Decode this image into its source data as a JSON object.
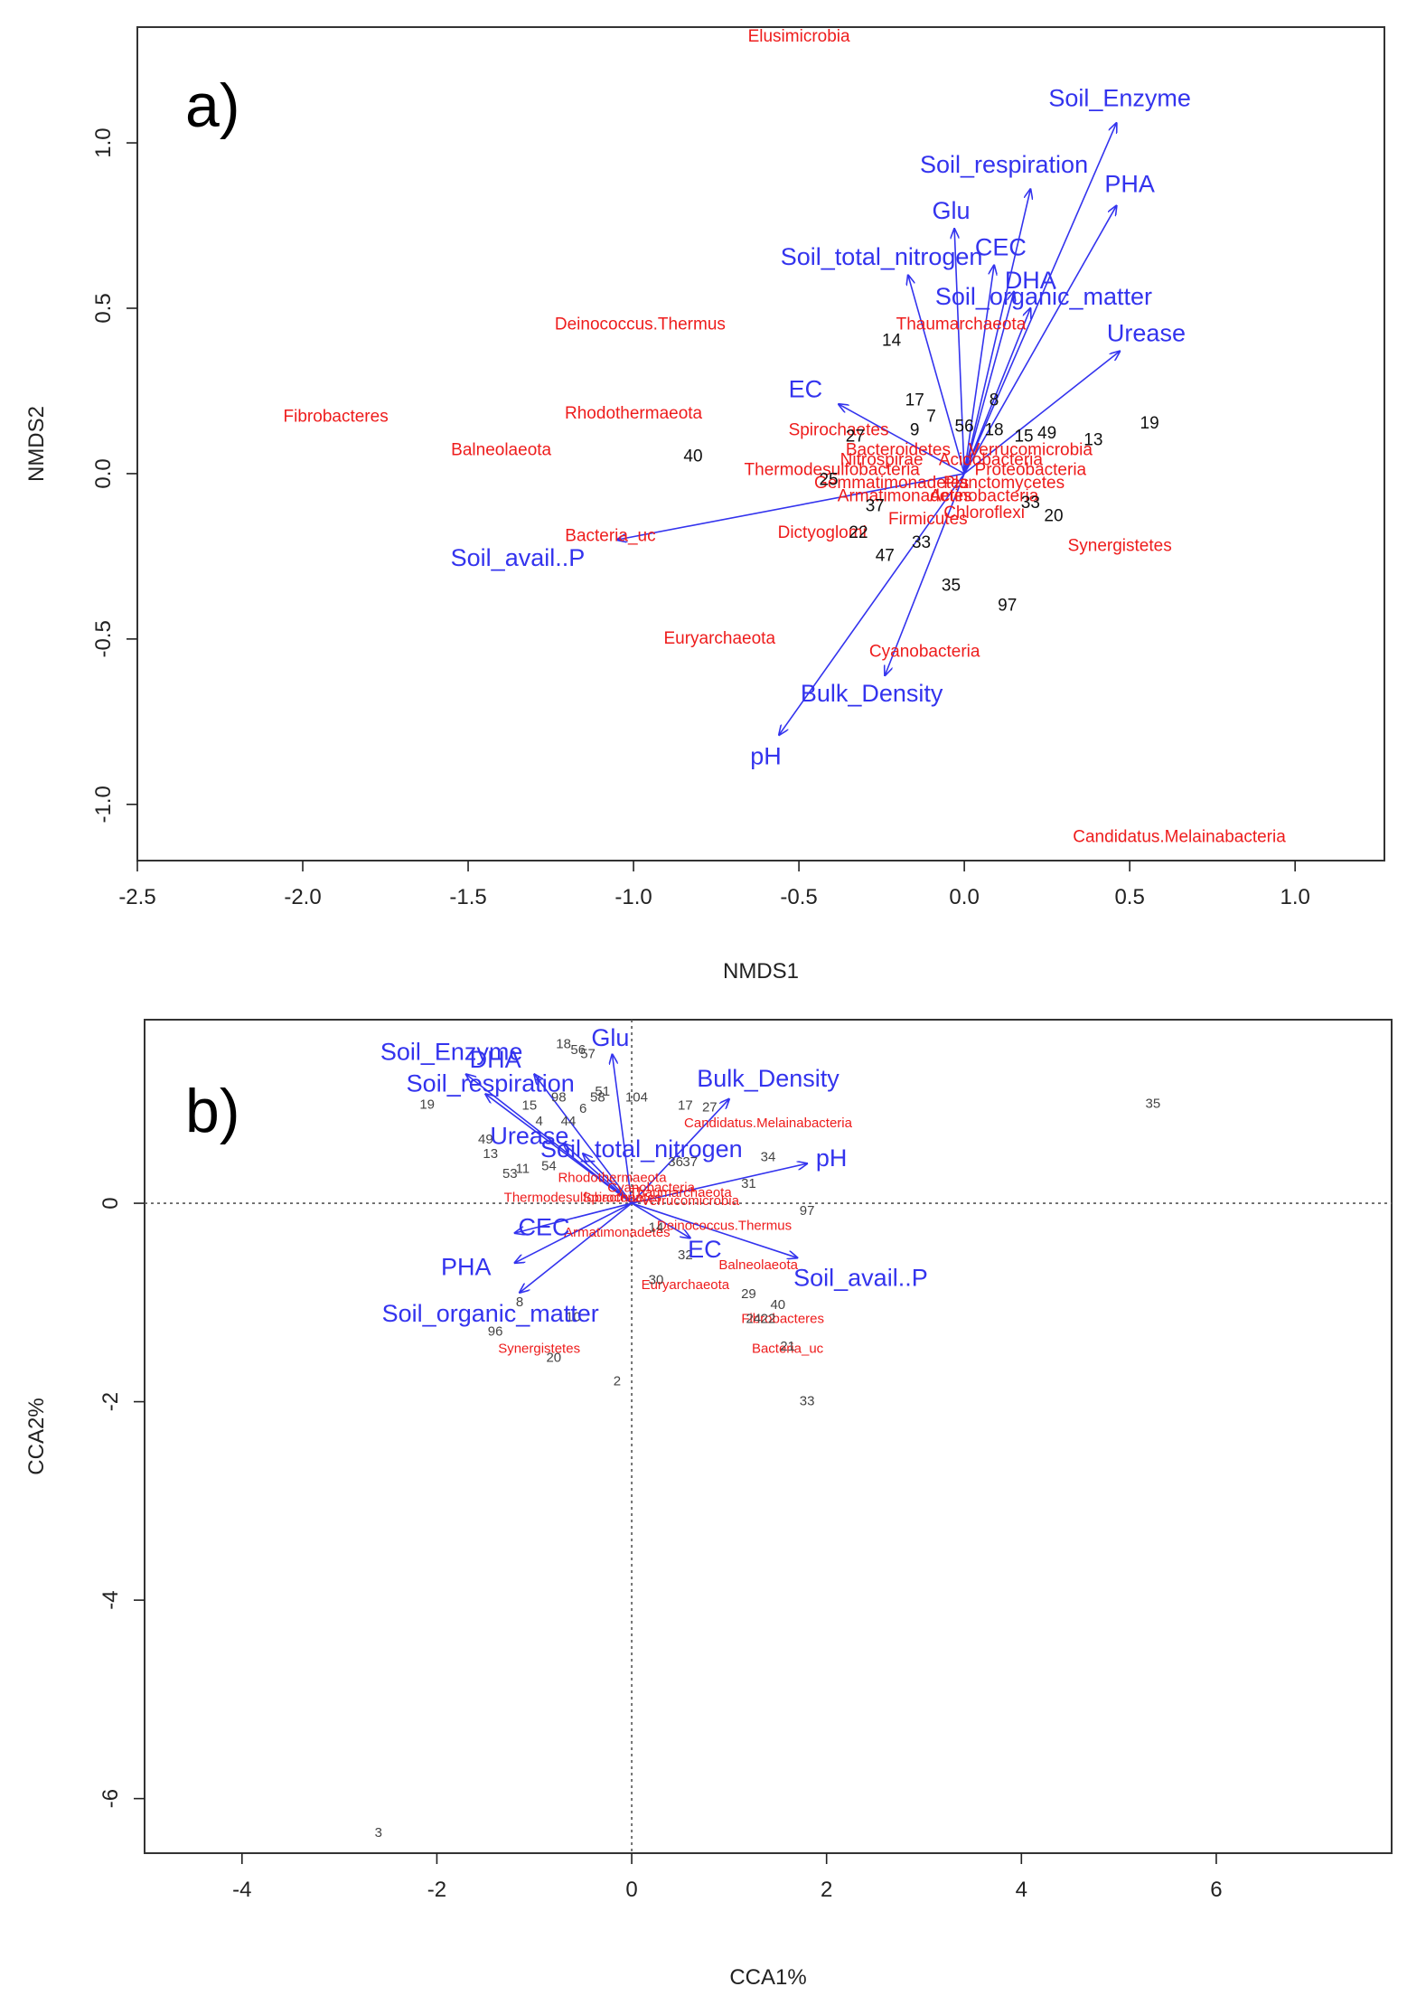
{
  "colors": {
    "env": "#3333ee",
    "species": "#ee1c1c",
    "site": "#111111",
    "axis": "#222222"
  },
  "chart_data": [
    {
      "type": "scatter",
      "panel_label": "a)",
      "xlabel": "NMDS1",
      "ylabel": "NMDS2",
      "xlim": [
        -2.5,
        1.27
      ],
      "ylim": [
        -1.17,
        1.35
      ],
      "x_ticks": [
        {
          "value": -2.5,
          "label": "-2.5"
        },
        {
          "value": -2.0,
          "label": "-2.0"
        },
        {
          "value": -1.5,
          "label": "-1.5"
        },
        {
          "value": -1.0,
          "label": "-1.0"
        },
        {
          "value": -0.5,
          "label": "-0.5"
        },
        {
          "value": 0.0,
          "label": "0.0"
        },
        {
          "value": 0.5,
          "label": "0.5"
        },
        {
          "value": 1.0,
          "label": "1.0"
        }
      ],
      "y_ticks": [
        {
          "value": -1.0,
          "label": "-1.0"
        },
        {
          "value": -0.5,
          "label": "-0.5"
        },
        {
          "value": 0.0,
          "label": "0.0"
        },
        {
          "value": 0.5,
          "label": "0.5"
        },
        {
          "value": 1.0,
          "label": "1.0"
        }
      ],
      "env_vectors": [
        {
          "label": "Soil_Enzyme",
          "x": 0.46,
          "y": 1.06,
          "lx": 0.47,
          "ly": 1.13
        },
        {
          "label": "Soil_respiration",
          "x": 0.2,
          "y": 0.86,
          "lx": 0.12,
          "ly": 0.93
        },
        {
          "label": "PHA",
          "x": 0.46,
          "y": 0.81,
          "lx": 0.5,
          "ly": 0.87
        },
        {
          "label": "Glu",
          "x": -0.03,
          "y": 0.74,
          "lx": -0.04,
          "ly": 0.79
        },
        {
          "label": "CEC",
          "x": 0.09,
          "y": 0.63,
          "lx": 0.11,
          "ly": 0.68
        },
        {
          "label": "Soil_total_nitrogen",
          "x": -0.17,
          "y": 0.6,
          "lx": -0.25,
          "ly": 0.65
        },
        {
          "label": "DHA",
          "x": 0.15,
          "y": 0.55,
          "lx": 0.2,
          "ly": 0.58
        },
        {
          "label": "Soil_organic_matter",
          "x": 0.2,
          "y": 0.5,
          "lx": 0.24,
          "ly": 0.53
        },
        {
          "label": "Urease",
          "x": 0.47,
          "y": 0.37,
          "lx": 0.55,
          "ly": 0.42
        },
        {
          "label": "EC",
          "x": -0.38,
          "y": 0.21,
          "lx": -0.48,
          "ly": 0.25
        },
        {
          "label": "Soil_avail..P",
          "x": -1.05,
          "y": -0.2,
          "lx": -1.35,
          "ly": -0.26
        },
        {
          "label": "Bulk_Density",
          "x": -0.24,
          "y": -0.61,
          "lx": -0.28,
          "ly": -0.67
        },
        {
          "label": "pH",
          "x": -0.56,
          "y": -0.79,
          "lx": -0.6,
          "ly": -0.86
        }
      ],
      "species": [
        {
          "label": "Elusimicrobia",
          "x": -0.5,
          "y": 1.32
        },
        {
          "label": "Deinococcus.Thermus",
          "x": -0.98,
          "y": 0.45
        },
        {
          "label": "Thaumarchaeota",
          "x": -0.01,
          "y": 0.45
        },
        {
          "label": "Fibrobacteres",
          "x": -1.9,
          "y": 0.17
        },
        {
          "label": "Rhodothermaeota",
          "x": -1.0,
          "y": 0.18
        },
        {
          "label": "Balneolaeota",
          "x": -1.4,
          "y": 0.07
        },
        {
          "label": "Spirochaetes",
          "x": -0.38,
          "y": 0.13
        },
        {
          "label": "Bacteroidetes",
          "x": -0.2,
          "y": 0.07
        },
        {
          "label": "Verrucomicrobia",
          "x": 0.2,
          "y": 0.07
        },
        {
          "label": "Nitrospirae",
          "x": -0.25,
          "y": 0.04
        },
        {
          "label": "Acidobacteria",
          "x": 0.08,
          "y": 0.04
        },
        {
          "label": "Thermodesulfobacteria",
          "x": -0.4,
          "y": 0.01
        },
        {
          "label": "Proteobacteria",
          "x": 0.2,
          "y": 0.01
        },
        {
          "label": "Gemmatimonadetes",
          "x": -0.22,
          "y": -0.03
        },
        {
          "label": "Planctomycetes",
          "x": 0.12,
          "y": -0.03
        },
        {
          "label": "Armatimonadetes",
          "x": -0.18,
          "y": -0.07
        },
        {
          "label": "Actinobacteria",
          "x": 0.06,
          "y": -0.07
        },
        {
          "label": "Firmicutes",
          "x": -0.11,
          "y": -0.14
        },
        {
          "label": "Chloroflexi",
          "x": 0.06,
          "y": -0.12
        },
        {
          "label": "Bacteria_uc",
          "x": -1.07,
          "y": -0.19
        },
        {
          "label": "Dictyoglomi",
          "x": -0.43,
          "y": -0.18
        },
        {
          "label": "Synergistetes",
          "x": 0.47,
          "y": -0.22
        },
        {
          "label": "Euryarchaeota",
          "x": -0.74,
          "y": -0.5
        },
        {
          "label": "Cyanobacteria",
          "x": -0.12,
          "y": -0.54
        },
        {
          "label": "Candidatus.Melainabacteria",
          "x": 0.65,
          "y": -1.1
        }
      ],
      "sites": [
        {
          "label": "14",
          "x": -0.22,
          "y": 0.4
        },
        {
          "label": "17",
          "x": -0.15,
          "y": 0.22
        },
        {
          "label": "9",
          "x": -0.15,
          "y": 0.13
        },
        {
          "label": "7",
          "x": -0.1,
          "y": 0.17
        },
        {
          "label": "56",
          "x": 0.0,
          "y": 0.14
        },
        {
          "label": "18",
          "x": 0.09,
          "y": 0.13
        },
        {
          "label": "8",
          "x": 0.09,
          "y": 0.22
        },
        {
          "label": "15",
          "x": 0.18,
          "y": 0.11
        },
        {
          "label": "49",
          "x": 0.25,
          "y": 0.12
        },
        {
          "label": "13",
          "x": 0.39,
          "y": 0.1
        },
        {
          "label": "19",
          "x": 0.56,
          "y": 0.15
        },
        {
          "label": "27",
          "x": -0.33,
          "y": 0.11
        },
        {
          "label": "40",
          "x": -0.82,
          "y": 0.05
        },
        {
          "label": "25",
          "x": -0.41,
          "y": -0.02
        },
        {
          "label": "37",
          "x": -0.27,
          "y": -0.1
        },
        {
          "label": "33",
          "x": 0.2,
          "y": -0.09
        },
        {
          "label": "20",
          "x": 0.27,
          "y": -0.13
        },
        {
          "label": "22",
          "x": -0.32,
          "y": -0.18
        },
        {
          "label": "33",
          "x": -0.13,
          "y": -0.21
        },
        {
          "label": "47",
          "x": -0.24,
          "y": -0.25
        },
        {
          "label": "35",
          "x": -0.04,
          "y": -0.34
        },
        {
          "label": "97",
          "x": 0.13,
          "y": -0.4
        }
      ]
    },
    {
      "type": "scatter",
      "panel_label": "b)",
      "xlabel": "CCA1%",
      "ylabel": "CCA2%",
      "xlim": [
        -5.0,
        7.8
      ],
      "ylim": [
        -6.55,
        1.85
      ],
      "x_ticks": [
        {
          "value": -4,
          "label": "-4"
        },
        {
          "value": -2,
          "label": "-2"
        },
        {
          "value": 0,
          "label": "0"
        },
        {
          "value": 2,
          "label": "2"
        },
        {
          "value": 4,
          "label": "4"
        },
        {
          "value": 6,
          "label": "6"
        }
      ],
      "y_ticks": [
        {
          "value": -6,
          "label": "-6"
        },
        {
          "value": -4,
          "label": "-4"
        },
        {
          "value": -2,
          "label": "-2"
        },
        {
          "value": 0,
          "label": "0"
        }
      ],
      "env_vectors": [
        {
          "label": "Soil_Enzyme",
          "x": -1.7,
          "y": 1.3,
          "lx": -1.85,
          "ly": 1.51
        },
        {
          "label": "DHA",
          "x": -1.0,
          "y": 1.3,
          "lx": -1.4,
          "ly": 1.43
        },
        {
          "label": "Glu",
          "x": -0.2,
          "y": 1.5,
          "lx": -0.22,
          "ly": 1.65
        },
        {
          "label": "Soil_respiration",
          "x": -1.5,
          "y": 1.1,
          "lx": -1.45,
          "ly": 1.19
        },
        {
          "label": "Bulk_Density",
          "x": 1.0,
          "y": 1.05,
          "lx": 1.4,
          "ly": 1.24
        },
        {
          "label": "Urease",
          "x": -0.7,
          "y": 0.6,
          "lx": -1.05,
          "ly": 0.66
        },
        {
          "label": "Soil_total_nitrogen",
          "x": -0.5,
          "y": 0.5,
          "lx": 0.1,
          "ly": 0.53
        },
        {
          "label": "pH",
          "x": 1.8,
          "y": 0.4,
          "lx": 2.05,
          "ly": 0.44
        },
        {
          "label": "CEC",
          "x": -1.2,
          "y": -0.3,
          "lx": -0.9,
          "ly": -0.26
        },
        {
          "label": "EC",
          "x": 0.6,
          "y": -0.35,
          "lx": 0.75,
          "ly": -0.48
        },
        {
          "label": "Soil_avail..P",
          "x": 1.7,
          "y": -0.55,
          "lx": 2.35,
          "ly": -0.77
        },
        {
          "label": "PHA",
          "x": -1.2,
          "y": -0.6,
          "lx": -1.7,
          "ly": -0.66
        },
        {
          "label": "Soil_organic_matter",
          "x": -1.15,
          "y": -0.9,
          "lx": -1.45,
          "ly": -1.13
        }
      ],
      "species": [
        {
          "label": "Candidatus.Melainabacteria",
          "x": 1.4,
          "y": 0.8
        },
        {
          "label": "Deinococcus.Thermus",
          "x": 0.95,
          "y": -0.23
        },
        {
          "label": "Balneolaeota",
          "x": 1.3,
          "y": -0.63
        },
        {
          "label": "Euryarchaeota",
          "x": 0.55,
          "y": -0.83
        },
        {
          "label": "Fibrobacteres",
          "x": 1.55,
          "y": -1.17
        },
        {
          "label": "Bacteria_uc",
          "x": 1.6,
          "y": -1.47
        },
        {
          "label": "Synergistetes",
          "x": -0.95,
          "y": -1.47
        },
        {
          "label": "Thaumarchaeota",
          "x": 0.5,
          "y": 0.1
        },
        {
          "label": "Verrucomicrobia",
          "x": 0.6,
          "y": 0.02
        },
        {
          "label": "Rhodothermaeota",
          "x": -0.2,
          "y": 0.25
        },
        {
          "label": "Spirochaetes",
          "x": -0.1,
          "y": 0.05
        },
        {
          "label": "Armatimonadetes",
          "x": -0.15,
          "y": -0.3
        },
        {
          "label": "Thermodesulfobacteria",
          "x": -0.6,
          "y": 0.05
        },
        {
          "label": "Cyanobacteria",
          "x": 0.2,
          "y": 0.15
        }
      ],
      "sites": [
        {
          "label": "18",
          "x": -0.7,
          "y": 1.6
        },
        {
          "label": "56",
          "x": -0.55,
          "y": 1.54
        },
        {
          "label": "57",
          "x": -0.45,
          "y": 1.5
        },
        {
          "label": "19",
          "x": -2.1,
          "y": 0.99
        },
        {
          "label": "15",
          "x": -1.05,
          "y": 0.98
        },
        {
          "label": "98",
          "x": -0.75,
          "y": 1.06
        },
        {
          "label": "51",
          "x": -0.3,
          "y": 1.12
        },
        {
          "label": "58",
          "x": -0.35,
          "y": 1.06
        },
        {
          "label": "104",
          "x": 0.05,
          "y": 1.06
        },
        {
          "label": "17",
          "x": 0.55,
          "y": 0.98
        },
        {
          "label": "27",
          "x": 0.8,
          "y": 0.96
        },
        {
          "label": "35",
          "x": 5.35,
          "y": 1.0
        },
        {
          "label": "4",
          "x": -0.95,
          "y": 0.82
        },
        {
          "label": "44",
          "x": -0.65,
          "y": 0.82
        },
        {
          "label": "6",
          "x": -0.5,
          "y": 0.95
        },
        {
          "label": "49",
          "x": -1.5,
          "y": 0.64
        },
        {
          "label": "13",
          "x": -1.45,
          "y": 0.49
        },
        {
          "label": "11",
          "x": -1.12,
          "y": 0.34
        },
        {
          "label": "54",
          "x": -0.85,
          "y": 0.37
        },
        {
          "label": "53",
          "x": -1.25,
          "y": 0.29
        },
        {
          "label": "34",
          "x": 1.4,
          "y": 0.46
        },
        {
          "label": "36",
          "x": 0.45,
          "y": 0.41
        },
        {
          "label": "37",
          "x": 0.6,
          "y": 0.41
        },
        {
          "label": "31",
          "x": 1.2,
          "y": 0.19
        },
        {
          "label": "97",
          "x": 1.8,
          "y": -0.08
        },
        {
          "label": "14",
          "x": 0.25,
          "y": -0.25
        },
        {
          "label": "32",
          "x": 0.55,
          "y": -0.53
        },
        {
          "label": "30",
          "x": 0.25,
          "y": -0.78
        },
        {
          "label": "29",
          "x": 1.2,
          "y": -0.92
        },
        {
          "label": "40",
          "x": 1.5,
          "y": -1.03
        },
        {
          "label": "24",
          "x": 1.25,
          "y": -1.17
        },
        {
          "label": "22",
          "x": 1.4,
          "y": -1.17
        },
        {
          "label": "21",
          "x": 1.6,
          "y": -1.45
        },
        {
          "label": "33",
          "x": 1.8,
          "y": -2.0
        },
        {
          "label": "8",
          "x": -1.15,
          "y": -1.0
        },
        {
          "label": "10",
          "x": -0.6,
          "y": -1.15
        },
        {
          "label": "96",
          "x": -1.4,
          "y": -1.3
        },
        {
          "label": "20",
          "x": -0.8,
          "y": -1.56
        },
        {
          "label": "2",
          "x": -0.15,
          "y": -1.8
        },
        {
          "label": "3",
          "x": -2.6,
          "y": -6.35
        }
      ]
    }
  ]
}
